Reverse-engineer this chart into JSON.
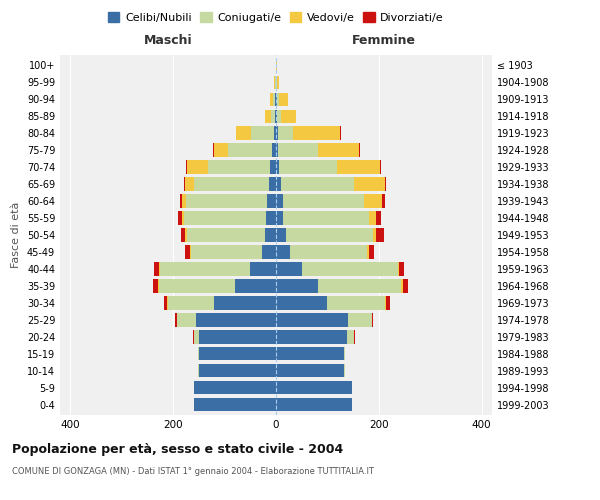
{
  "age_groups": [
    "100+",
    "95-99",
    "90-94",
    "85-89",
    "80-84",
    "75-79",
    "70-74",
    "65-69",
    "60-64",
    "55-59",
    "50-54",
    "45-49",
    "40-44",
    "35-39",
    "30-34",
    "25-29",
    "20-24",
    "15-19",
    "10-14",
    "5-9",
    "0-4"
  ],
  "birth_years": [
    "≤ 1903",
    "1904-1908",
    "1909-1913",
    "1914-1918",
    "1919-1923",
    "1924-1928",
    "1929-1933",
    "1934-1938",
    "1939-1943",
    "1944-1948",
    "1949-1953",
    "1954-1958",
    "1959-1963",
    "1964-1968",
    "1969-1973",
    "1974-1978",
    "1979-1983",
    "1984-1988",
    "1989-1993",
    "1994-1998",
    "1999-2003"
  ],
  "male_celibi": [
    0,
    0,
    1,
    2,
    4,
    8,
    12,
    14,
    17,
    20,
    22,
    28,
    50,
    80,
    120,
    155,
    150,
    150,
    150,
    160,
    160
  ],
  "male_coniugati": [
    0,
    2,
    4,
    8,
    45,
    85,
    120,
    145,
    158,
    158,
    152,
    138,
    175,
    148,
    90,
    38,
    10,
    2,
    1,
    0,
    0
  ],
  "male_vedovi": [
    0,
    2,
    6,
    12,
    28,
    28,
    42,
    18,
    8,
    4,
    3,
    2,
    2,
    1,
    1,
    0,
    0,
    0,
    0,
    0,
    0
  ],
  "male_divorziati": [
    0,
    0,
    0,
    0,
    0,
    1,
    1,
    2,
    3,
    8,
    8,
    8,
    10,
    10,
    7,
    4,
    1,
    0,
    0,
    0,
    0
  ],
  "female_celibi": [
    0,
    0,
    1,
    2,
    4,
    4,
    6,
    10,
    13,
    13,
    20,
    28,
    50,
    82,
    100,
    140,
    138,
    133,
    133,
    148,
    148
  ],
  "female_coniugati": [
    0,
    1,
    4,
    8,
    30,
    78,
    112,
    142,
    158,
    168,
    168,
    148,
    188,
    162,
    112,
    46,
    14,
    2,
    1,
    0,
    0
  ],
  "female_vedovi": [
    1,
    4,
    18,
    28,
    90,
    80,
    85,
    60,
    36,
    13,
    7,
    4,
    2,
    2,
    2,
    1,
    0,
    0,
    0,
    0,
    0
  ],
  "female_divorziati": [
    0,
    0,
    0,
    0,
    2,
    2,
    2,
    2,
    4,
    10,
    15,
    10,
    8,
    10,
    8,
    2,
    1,
    0,
    0,
    0,
    0
  ],
  "colors": {
    "celibi": "#3a6ea5",
    "coniugati": "#c5d9a0",
    "vedovi": "#f5c842",
    "divorziati": "#cc1111"
  },
  "title": "Popolazione per età, sesso e stato civile - 2004",
  "subtitle": "COMUNE DI GONZAGA (MN) - Dati ISTAT 1° gennaio 2004 - Elaborazione TUTTITALIA.IT",
  "xlabel_left": "Maschi",
  "xlabel_right": "Femmine",
  "ylabel_left": "Fasce di età",
  "legend_labels": [
    "Celibi/Nubili",
    "Coniugati/e",
    "Vedovi/e",
    "Divorziati/e"
  ],
  "xlim": 420,
  "background_color": "#ffffff",
  "plot_bg": "#f0f0f0"
}
